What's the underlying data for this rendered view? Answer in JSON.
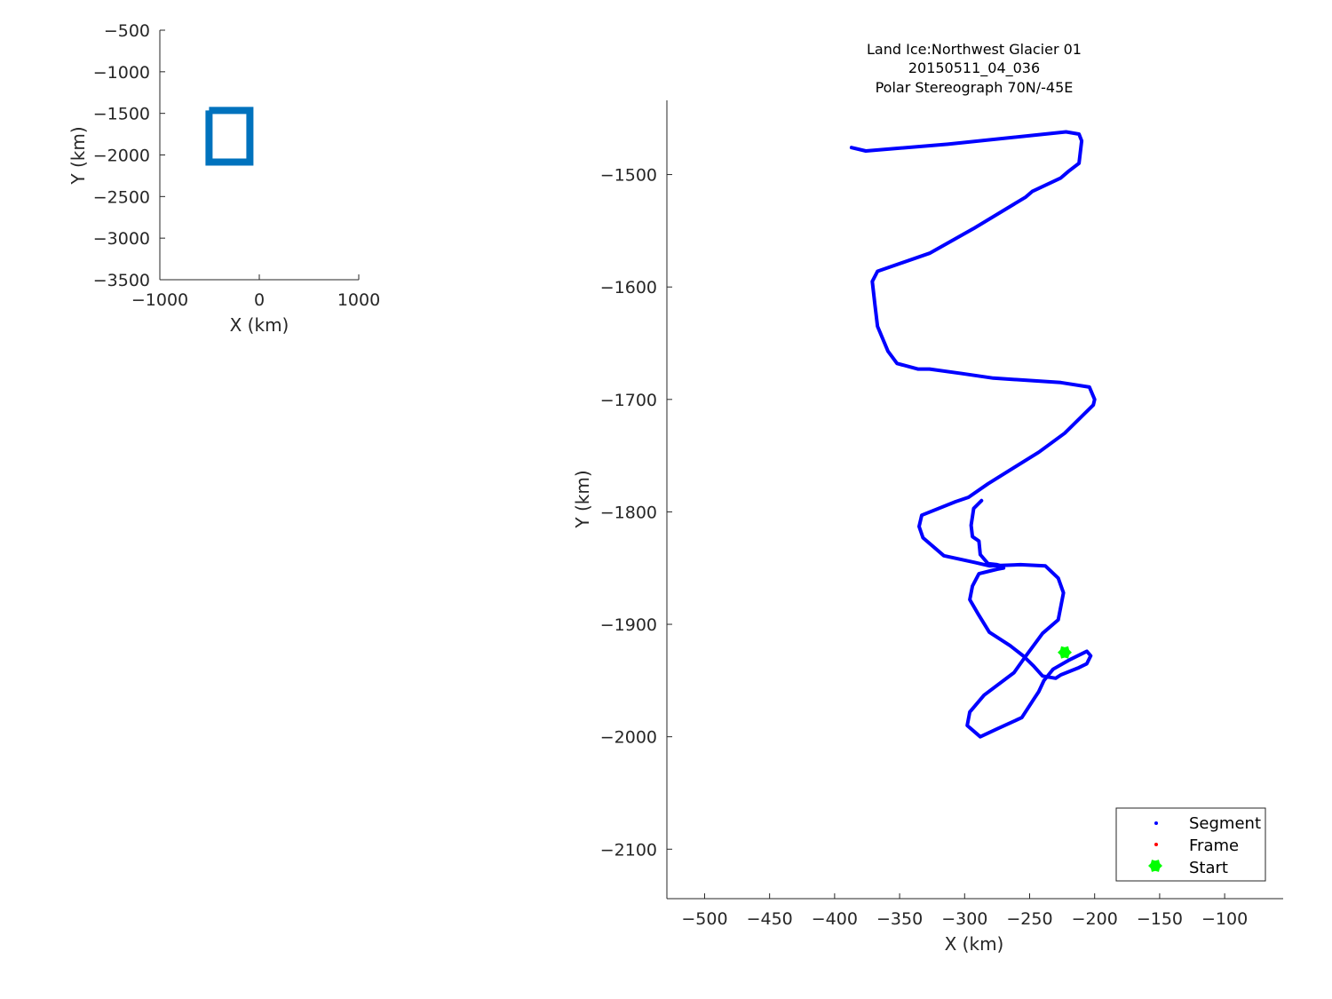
{
  "chart_data": [
    {
      "type": "line",
      "id": "overview",
      "xlabel": "X (km)",
      "ylabel": "Y (km)",
      "xlim": [
        -1000,
        1000
      ],
      "ylim": [
        -3500,
        -500
      ],
      "xticks": [
        -1000,
        0,
        1000
      ],
      "xtick_labels": [
        "−1000",
        "0",
        "1000"
      ],
      "yticks": [
        -500,
        -1000,
        -1500,
        -2000,
        -2500,
        -3000,
        -3500
      ],
      "ytick_labels": [
        "−500",
        "−1000",
        "−1500",
        "−2000",
        "−2500",
        "−3000",
        "−3500"
      ],
      "grid": false,
      "series": [
        {
          "color": "#0072bd",
          "x": [
            -505,
            -95,
            -95,
            -505,
            -505
          ],
          "y": [
            -1465,
            -1465,
            -2085,
            -2085,
            -1465
          ]
        }
      ]
    },
    {
      "type": "scatter",
      "id": "flightline",
      "title": [
        "Land Ice:Northwest Glacier 01",
        "20150511_04_036",
        "Polar Stereograph 70N/-45E"
      ],
      "xlabel": "X (km)",
      "ylabel": "Y (km)",
      "xlim": [
        -529,
        -55
      ],
      "ylim": [
        -2144,
        -1434
      ],
      "xticks": [
        -500,
        -450,
        -400,
        -350,
        -300,
        -250,
        -200,
        -150,
        -100
      ],
      "xtick_labels": [
        "−500",
        "−450",
        "−400",
        "−350",
        "−300",
        "−250",
        "−200",
        "−150",
        "−100"
      ],
      "yticks": [
        -1500,
        -1600,
        -1700,
        -1800,
        -1900,
        -2000,
        -2100
      ],
      "ytick_labels": [
        "−1500",
        "−1600",
        "−1700",
        "−1800",
        "−1900",
        "−2000",
        "−2100"
      ],
      "grid": false,
      "legend_position": "bottom-right",
      "legend": [
        "Segment",
        "Frame",
        "Start"
      ],
      "series": [
        {
          "name": "Segment",
          "color": "#0000ff",
          "x": [
            -387,
            -376,
            -313,
            -222,
            -212,
            -210,
            -212,
            -220,
            -226,
            -248,
            -253,
            -293,
            -327,
            -367,
            -371,
            -369,
            -367,
            -359,
            -352,
            -336,
            -327,
            -302,
            -278,
            -226,
            -204,
            -200,
            -201,
            -223,
            -243,
            -282,
            -297,
            -307,
            -333,
            -335,
            -332,
            -316,
            -292,
            -281,
            -257,
            -238,
            -228,
            -224,
            -228,
            -240,
            -254,
            -262,
            -285,
            -296,
            -298,
            -288,
            -275,
            -256,
            -246,
            -243,
            -239,
            -232,
            -220,
            -206,
            -203,
            -206,
            -213,
            -226,
            -230,
            -240,
            -247,
            -255,
            -265,
            -281,
            -290,
            -296,
            -294,
            -289,
            -275,
            -270,
            -272,
            -275,
            -282,
            -288,
            -289,
            -294,
            -295,
            -293,
            -287
          ],
          "y": [
            -1476,
            -1479,
            -1473,
            -1462,
            -1464,
            -1470,
            -1490,
            -1497,
            -1503,
            -1515,
            -1520,
            -1548,
            -1570,
            -1586,
            -1595,
            -1616,
            -1635,
            -1657,
            -1668,
            -1673,
            -1673,
            -1677,
            -1681,
            -1685,
            -1689,
            -1700,
            -1705,
            -1730,
            -1747,
            -1775,
            -1787,
            -1791,
            -1803,
            -1813,
            -1823,
            -1839,
            -1845,
            -1848,
            -1847,
            -1848,
            -1859,
            -1872,
            -1896,
            -1908,
            -1930,
            -1943,
            -1963,
            -1978,
            -1990,
            -2000,
            -1993,
            -1983,
            -1965,
            -1960,
            -1950,
            -1940,
            -1932,
            -1924,
            -1928,
            -1935,
            -1939,
            -1945,
            -1948,
            -1946,
            -1937,
            -1928,
            -1919,
            -1907,
            -1890,
            -1878,
            -1866,
            -1855,
            -1851,
            -1850,
            -1848,
            -1847,
            -1846,
            -1838,
            -1826,
            -1822,
            -1812,
            -1797,
            -1790
          ]
        },
        {
          "name": "Frame",
          "color": "#ff0000",
          "x": [],
          "y": []
        },
        {
          "name": "Start",
          "color": "#00ff00",
          "x": [
            -223
          ],
          "y": [
            -1925
          ]
        }
      ]
    }
  ]
}
